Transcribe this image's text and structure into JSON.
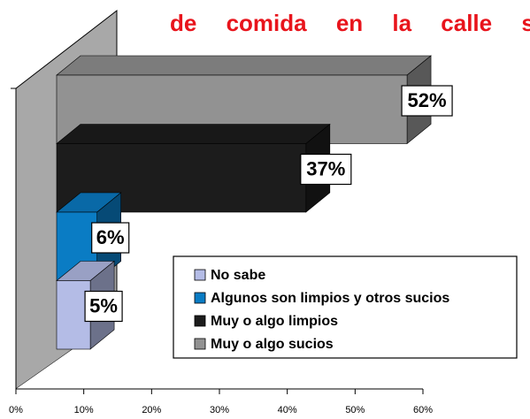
{
  "chart_data": {
    "type": "bar",
    "orientation": "horizontal",
    "title": "de comida en la calle s",
    "categories": [
      "No sabe",
      "Algunos son limpios y otros sucios",
      "Muy o algo limpios",
      "Muy o algo sucios"
    ],
    "values": [
      5,
      6,
      37,
      52
    ],
    "value_labels": [
      "5%",
      "6%",
      "37%",
      "52%"
    ],
    "colors": [
      "#b4bce6",
      "#0a7cc4",
      "#1c1c1c",
      "#929292"
    ],
    "xlim": [
      0,
      60
    ],
    "xticks": [
      {
        "value": 0,
        "label": "0%"
      },
      {
        "value": 10,
        "label": "10%"
      },
      {
        "value": 20,
        "label": "20%"
      },
      {
        "value": 30,
        "label": "30%"
      },
      {
        "value": 40,
        "label": "40%"
      },
      {
        "value": 50,
        "label": "50%"
      },
      {
        "value": 60,
        "label": "60%"
      }
    ],
    "legend": "lower right"
  }
}
